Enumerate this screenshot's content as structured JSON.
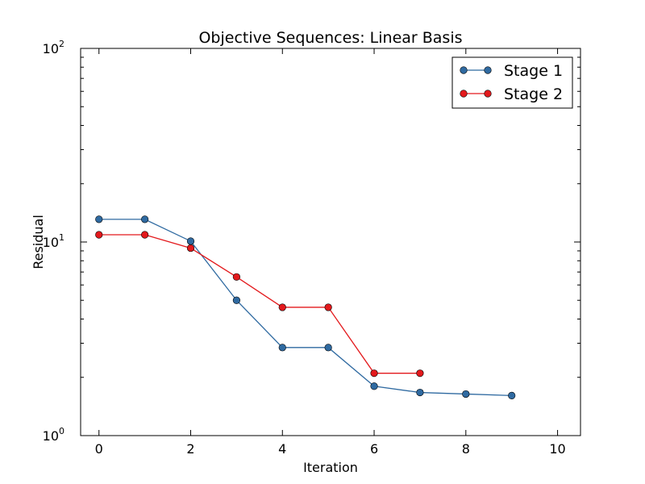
{
  "chart_data": {
    "type": "line",
    "title": "Objective Sequences: Linear Basis",
    "xlabel": "Iteration",
    "ylabel": "Residual",
    "xlim": [
      -0.4,
      10.5
    ],
    "ylim": [
      1,
      100
    ],
    "yscale": "log",
    "x_ticks": [
      0,
      2,
      4,
      6,
      8,
      10
    ],
    "y_ticks": [
      {
        "value": 1,
        "base": "10",
        "exponent": "0"
      },
      {
        "value": 10,
        "base": "10",
        "exponent": "1"
      },
      {
        "value": 100,
        "base": "10",
        "exponent": "2"
      }
    ],
    "grid": false,
    "legend_position": "top-right",
    "series": [
      {
        "name": "Stage 1",
        "color": "#2f6aa1",
        "x": [
          0,
          1,
          2,
          3,
          4,
          5,
          6,
          7,
          8,
          9
        ],
        "values": [
          13.1,
          13.1,
          10.1,
          5.0,
          2.85,
          2.85,
          1.8,
          1.67,
          1.64,
          1.61
        ]
      },
      {
        "name": "Stage 2",
        "color": "#e3191c",
        "x": [
          0,
          1,
          2,
          3,
          4,
          5,
          6,
          7
        ],
        "values": [
          10.9,
          10.9,
          9.3,
          6.6,
          4.6,
          4.6,
          2.1,
          2.1
        ]
      }
    ]
  }
}
